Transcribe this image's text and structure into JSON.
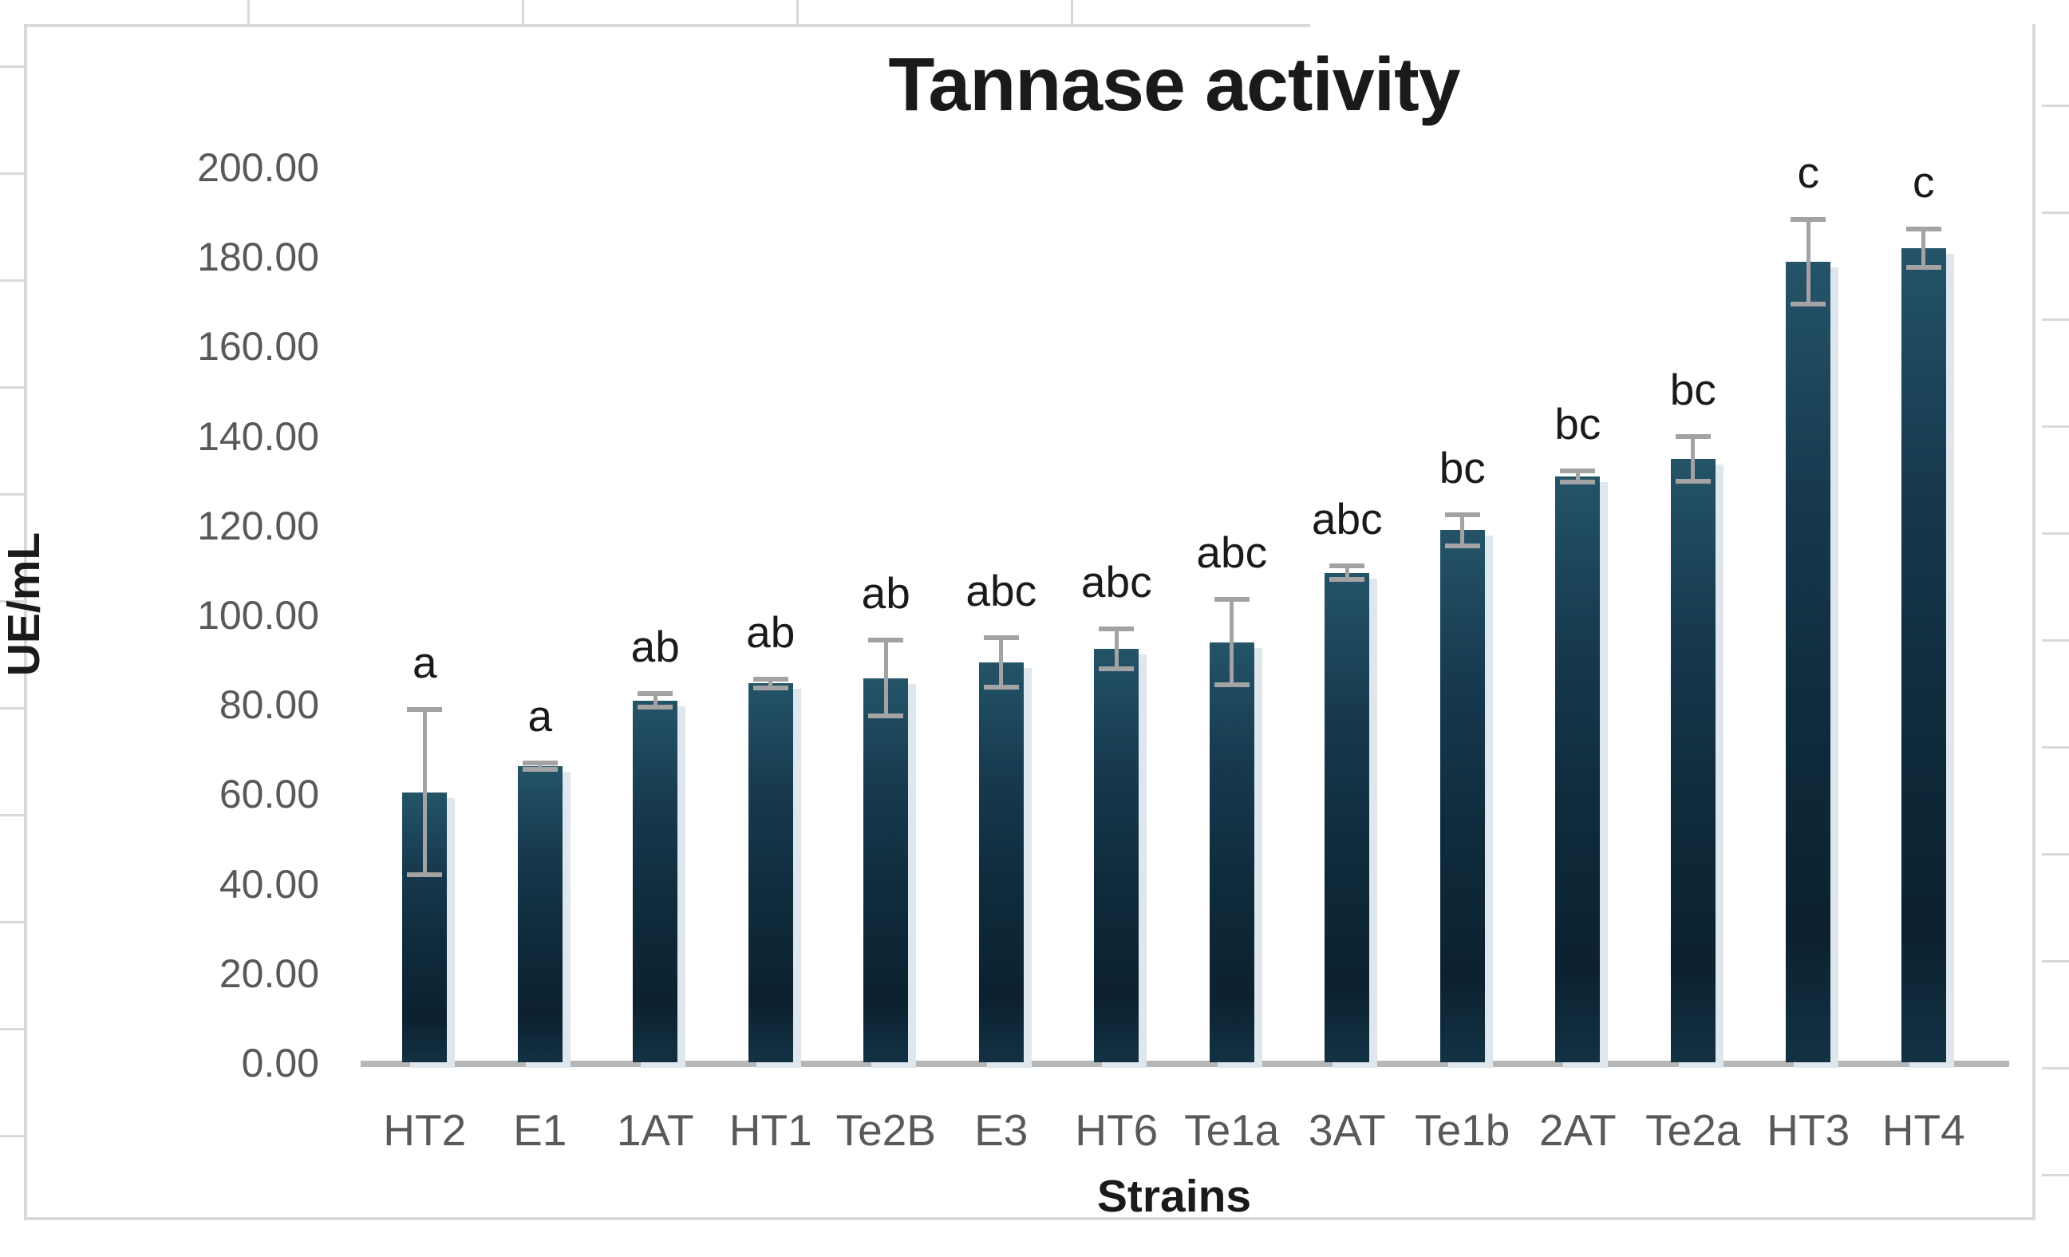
{
  "chart": {
    "title": "Tannase activity",
    "y_axis_label": "UE/mL",
    "x_axis_label": "Strains"
  },
  "chart_data": {
    "type": "bar",
    "title": "Tannase activity",
    "xlabel": "Strains",
    "ylabel": "UE/mL",
    "ylim": [
      0,
      200
    ],
    "grid": false,
    "legend": null,
    "yticks": [
      {
        "value": 0,
        "label": "0.00"
      },
      {
        "value": 20,
        "label": "20.00"
      },
      {
        "value": 40,
        "label": "40.00"
      },
      {
        "value": 60,
        "label": "60.00"
      },
      {
        "value": 80,
        "label": "80.00"
      },
      {
        "value": 100,
        "label": "100.00"
      },
      {
        "value": 120,
        "label": "120.00"
      },
      {
        "value": 140,
        "label": "140.00"
      },
      {
        "value": 160,
        "label": "160.00"
      },
      {
        "value": 180,
        "label": "180.00"
      },
      {
        "value": 200,
        "label": "200.00"
      }
    ],
    "categories": [
      "HT2",
      "E1",
      "1AT",
      "HT1",
      "Te2B",
      "E3",
      "HT6",
      "Te1a",
      "3AT",
      "Te1b",
      "2AT",
      "Te2a",
      "HT3",
      "HT4"
    ],
    "values": [
      60.5,
      66.3,
      81.0,
      84.8,
      86.0,
      89.5,
      92.5,
      94.0,
      109.5,
      119.0,
      131.0,
      135.0,
      179.0,
      182.0
    ],
    "error_bars": [
      18.5,
      0.7,
      1.5,
      1.0,
      8.5,
      5.5,
      4.5,
      9.5,
      1.5,
      3.5,
      1.2,
      5.0,
      9.5,
      4.3
    ],
    "significance_letters": [
      "a",
      "a",
      "ab",
      "ab",
      "ab",
      "abc",
      "abc",
      "abc",
      "abc",
      "bc",
      "bc",
      "bc",
      "c",
      "c"
    ],
    "bar_gradient_top": "#245468",
    "bar_gradient_bottom": "#0c2130",
    "bar_shadow_color": "#dfe7ee",
    "error_bar_color": "#a3a3a3",
    "axis_line_color": "#b7b7b7",
    "tick_label_color": "#595959",
    "category_label_color": "#595959",
    "title_color": "#1a1a1a",
    "frame_border_color": "#d9d9d9"
  }
}
